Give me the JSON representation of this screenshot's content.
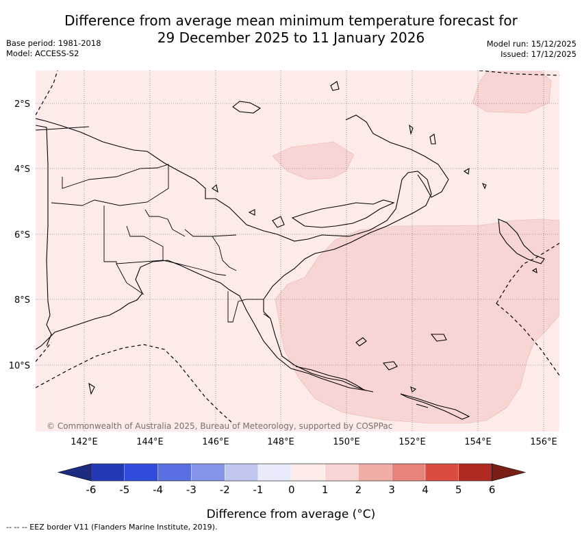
{
  "header": {
    "title_line1": "Difference from average mean minimum temperature forecast for",
    "title_line2": "29 December 2025 to 11 January 2026",
    "base_period": "Base period: 1981-2018",
    "model": "Model: ACCESS-S2",
    "model_run": "Model run: 15/12/2025",
    "issued": "Issued: 17/12/2025"
  },
  "map": {
    "lat_labels": [
      "2°S",
      "4°S",
      "6°S",
      "8°S",
      "10°S"
    ],
    "lon_labels": [
      "142°E",
      "144°E",
      "146°E",
      "148°E",
      "150°E",
      "152°E",
      "154°E",
      "156°E"
    ],
    "copyright": "© Commonwealth of Australia 2025, Bureau of Meteorology, supported by COSPPac",
    "background_category": "0 to 1",
    "anomaly_category": "1 to 2"
  },
  "colorbar": {
    "ticks": [
      "-6",
      "-5",
      "-4",
      "-3",
      "-2",
      "-1",
      "0",
      "1",
      "2",
      "3",
      "4",
      "5",
      "6"
    ],
    "colors": [
      "#1c2b80",
      "#2339b5",
      "#2f4cdc",
      "#5a70e2",
      "#8795e8",
      "#c0c7f1",
      "#e8ebfa",
      "#fcebe8",
      "#f7d5d2",
      "#f0aca6",
      "#e8837b",
      "#dc4b3f",
      "#b02a22",
      "#7a1e18"
    ],
    "label": "Difference from average (°C)"
  },
  "footer": {
    "legend_note": "-- -- -- EEZ border V11 (Flanders Marine Institute, 2019)."
  }
}
